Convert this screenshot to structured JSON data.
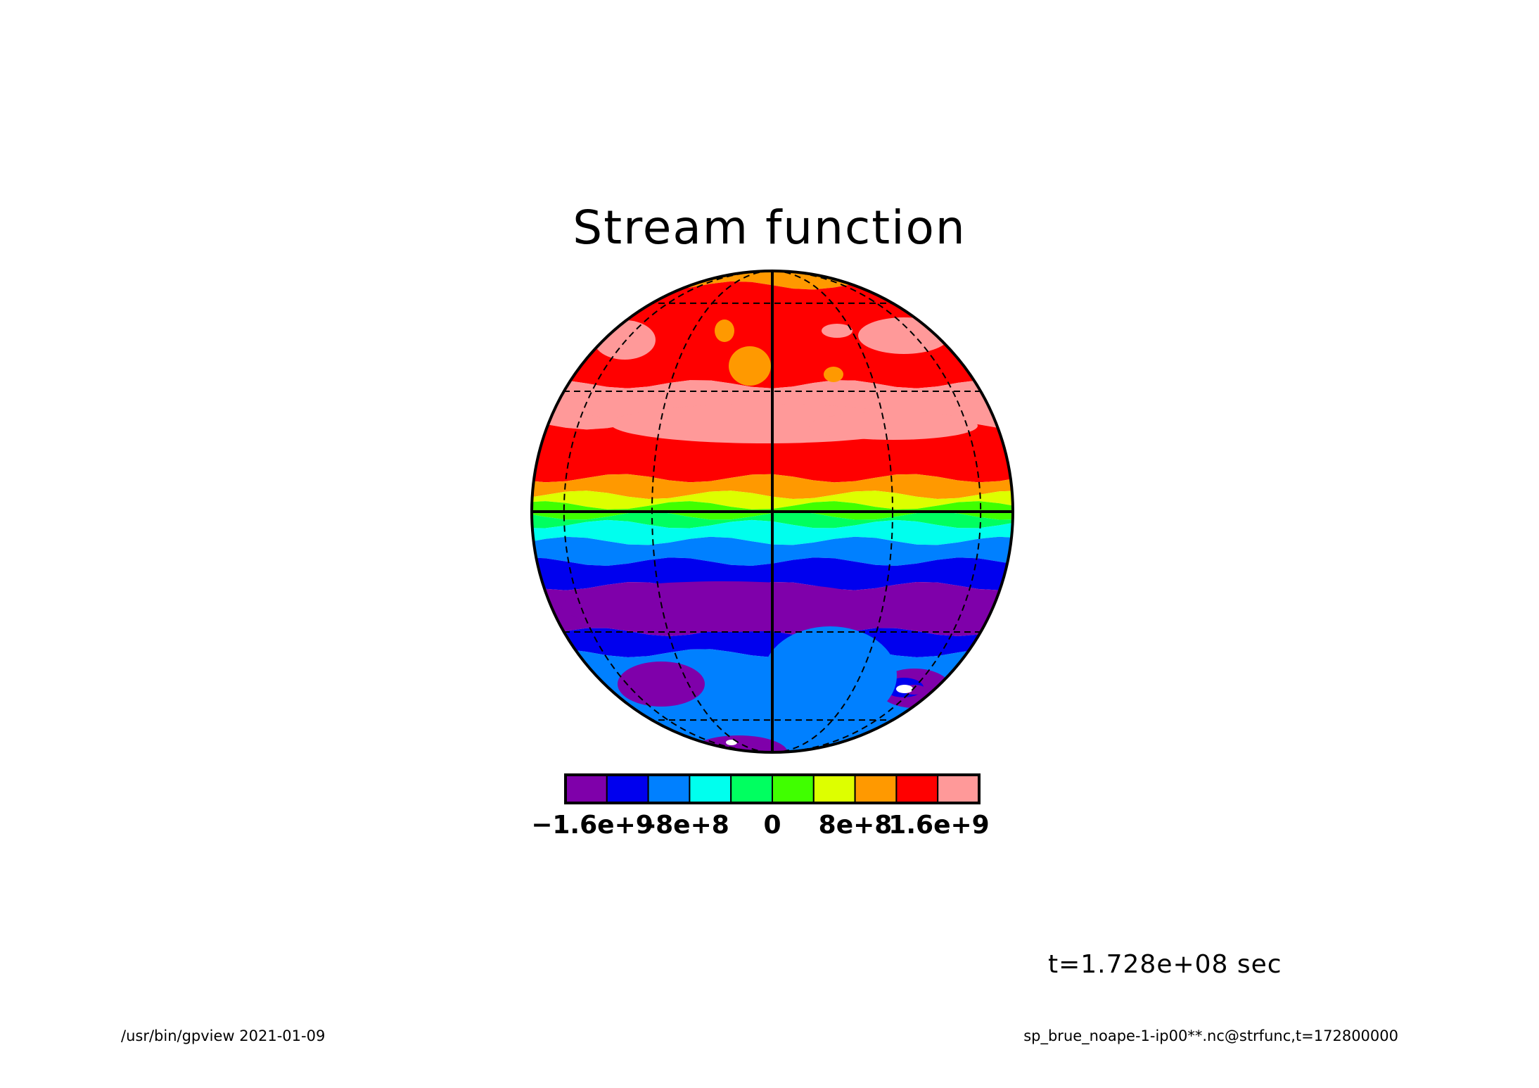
{
  "title": "Stream function",
  "time_label": "t=1.728e+08 sec",
  "footer_left": "/usr/bin/gpview  2021-01-09",
  "footer_right": "sp_brue_noape-1-ip00**.nc@strfunc,t=172800000",
  "chart_data": {
    "type": "heatmap",
    "projection": "orthographic",
    "title": "Stream function",
    "colorbar": {
      "colors": [
        "#7f00aa",
        "#0000ee",
        "#0080ff",
        "#00ffee",
        "#00ff60",
        "#40ff00",
        "#ddff00",
        "#ff9900",
        "#ff0000",
        "#ff9999"
      ],
      "tick_labels": [
        "−1.6e+9",
        "-8e+8",
        "0",
        "8e+8",
        "1.6e+9"
      ],
      "tick_values": [
        -1600000000,
        -800000000,
        0,
        800000000,
        1600000000
      ],
      "interval": 400000000
    },
    "zonal_bands": [
      {
        "lat_from": 90,
        "lat_to": 70,
        "level": "7"
      },
      {
        "lat_from": 70,
        "lat_to": 32,
        "level": "8"
      },
      {
        "lat_from": 32,
        "lat_to": 21,
        "level": "9"
      },
      {
        "lat_from": 21,
        "lat_to": 8,
        "level": "8"
      },
      {
        "lat_from": 8,
        "lat_to": 4,
        "level": "7"
      },
      {
        "lat_from": 4,
        "lat_to": 1.5,
        "level": "6"
      },
      {
        "lat_from": 1.5,
        "lat_to": -1,
        "level": "5"
      },
      {
        "lat_from": -1,
        "lat_to": -3,
        "level": "4"
      },
      {
        "lat_from": -3,
        "lat_to": -7,
        "level": "3"
      },
      {
        "lat_from": -7,
        "lat_to": -12,
        "level": "2"
      },
      {
        "lat_from": -12,
        "lat_to": -18,
        "level": "1"
      },
      {
        "lat_from": -18,
        "lat_to": -30,
        "level": "0"
      },
      {
        "lat_from": -30,
        "lat_to": -36,
        "level": "1"
      },
      {
        "lat_from": -36,
        "lat_to": -90,
        "level": "2"
      }
    ],
    "gridlines": {
      "meridians_dashed": true,
      "parallels_dashed": true
    }
  }
}
